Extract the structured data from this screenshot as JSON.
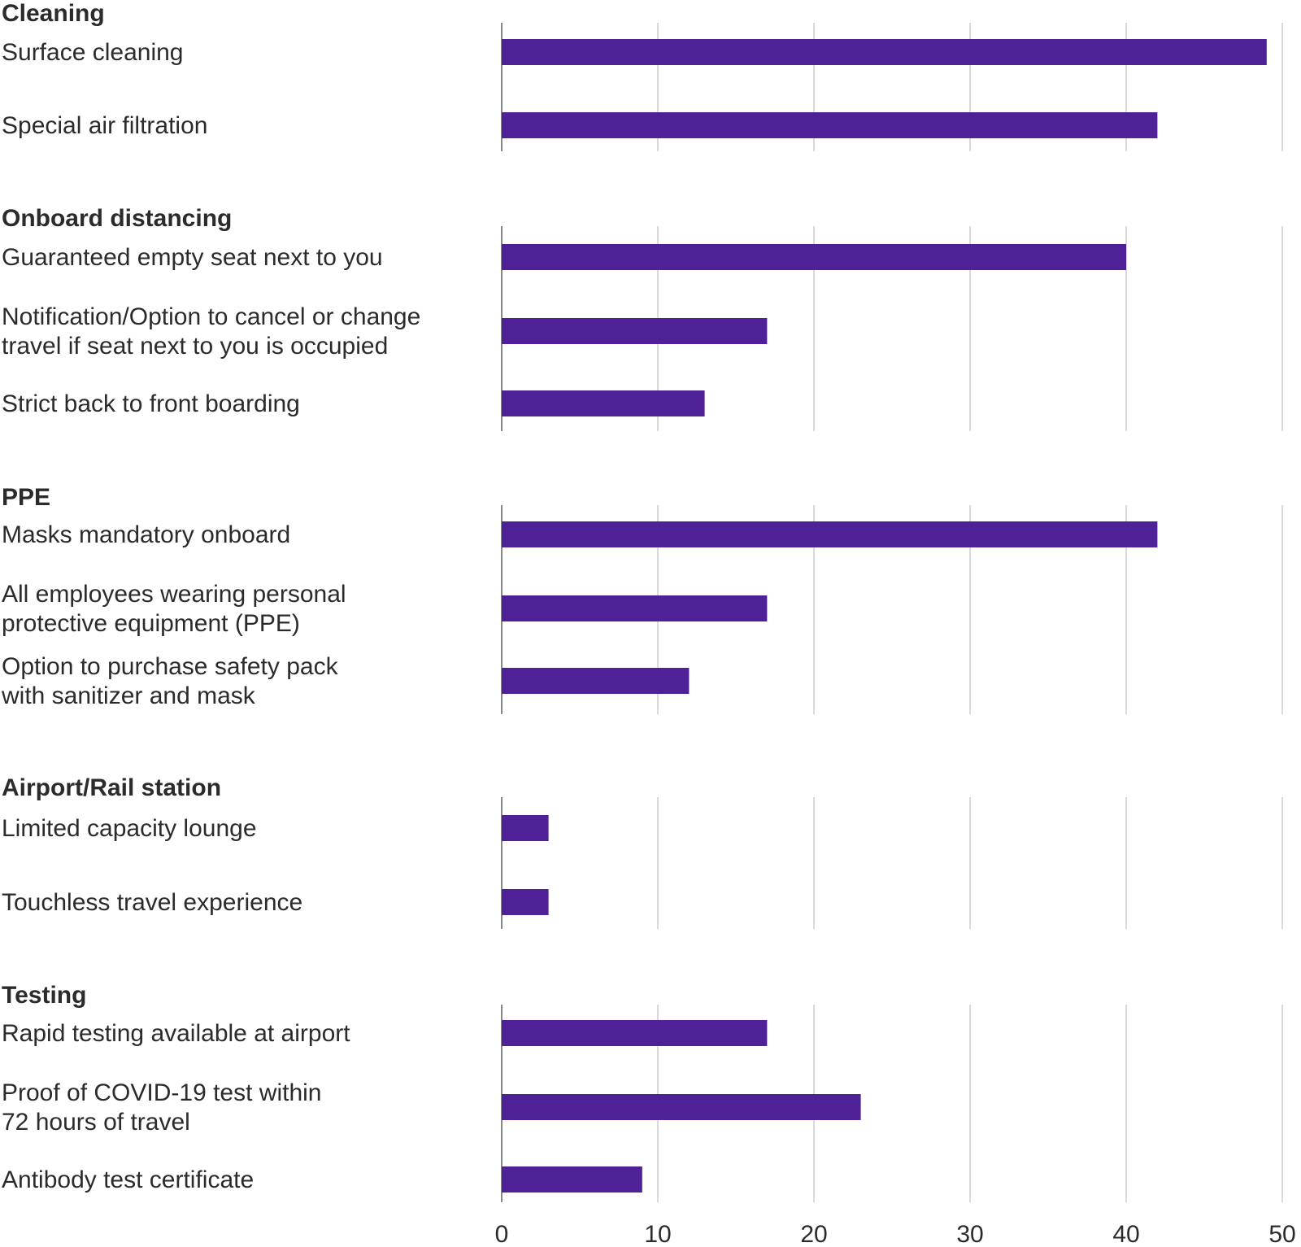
{
  "chart_data": {
    "type": "bar",
    "orientation": "horizontal",
    "color": "#4f2196",
    "xlim": [
      0,
      50
    ],
    "x_ticks": [
      "0",
      "10",
      "20",
      "30",
      "40",
      "50"
    ],
    "grid": true,
    "title": "",
    "xlabel": "",
    "ylabel": "",
    "groups": [
      {
        "name": "Cleaning",
        "items": [
          {
            "label": [
              "Surface cleaning"
            ],
            "value": 49
          },
          {
            "label": [
              "Special air filtration"
            ],
            "value": 42
          }
        ]
      },
      {
        "name": "Onboard distancing",
        "items": [
          {
            "label": [
              "Guaranteed empty seat next to you"
            ],
            "value": 40
          },
          {
            "label": [
              "Notification/Option to cancel or change",
              "travel if seat next to you is occupied"
            ],
            "value": 17
          },
          {
            "label": [
              "Strict back to front boarding"
            ],
            "value": 13
          }
        ]
      },
      {
        "name": "PPE",
        "items": [
          {
            "label": [
              "Masks mandatory onboard"
            ],
            "value": 42
          },
          {
            "label": [
              "All employees wearing personal",
              "protective equipment (PPE)"
            ],
            "value": 17
          },
          {
            "label": [
              "Option to purchase safety pack",
              "with sanitizer and mask"
            ],
            "value": 12
          }
        ]
      },
      {
        "name": "Airport/Rail station",
        "items": [
          {
            "label": [
              "Limited capacity lounge"
            ],
            "value": 3
          },
          {
            "label": [
              "Touchless travel experience"
            ],
            "value": 3
          }
        ]
      },
      {
        "name": "Testing",
        "items": [
          {
            "label": [
              "Rapid testing available at airport"
            ],
            "value": 17
          },
          {
            "label": [
              "Proof of COVID-19 test within",
              "72 hours of travel"
            ],
            "value": 23
          },
          {
            "label": [
              "Antibody test certificate"
            ],
            "value": 9
          }
        ]
      }
    ]
  }
}
